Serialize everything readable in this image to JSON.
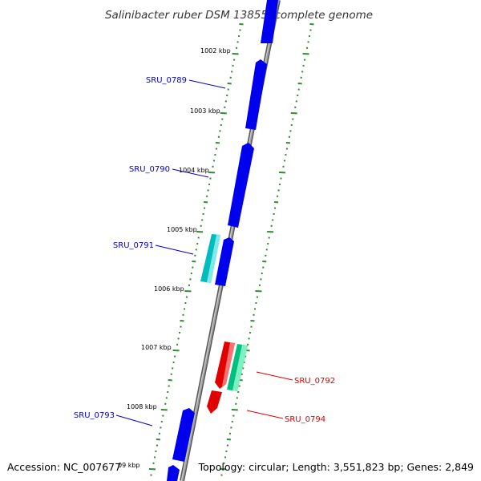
{
  "title": "Salinibacter ruber DSM 13855, complete genome",
  "accession_text": "Accession: NC_007677",
  "topology_text": "Topology: circular; Length: 3,551,823 bp; Genes: 2,849",
  "colors": {
    "backbone": "#8a8a8a",
    "tick": "#2e8b2e",
    "forward_cds": "#0000ee",
    "forward_alt": "#00bcbc",
    "reverse_cds": "#e00000",
    "reverse_alt": "#00c080",
    "forward_label": "#0000cc",
    "reverse_label": "#dd0000"
  },
  "kbp_labels": [
    "1002 kbp",
    "1003 kbp",
    "1004 kbp",
    "1005 kbp",
    "1006 kbp",
    "1007 kbp",
    "1008 kbp",
    "09 kbp"
  ],
  "gene_labels": [
    {
      "id": "SRU_0789",
      "strand": "forward"
    },
    {
      "id": "SRU_0790",
      "strand": "forward"
    },
    {
      "id": "SRU_0791",
      "strand": "forward"
    },
    {
      "id": "SRU_0793",
      "strand": "forward"
    },
    {
      "id": "SRU_0792",
      "strand": "reverse"
    },
    {
      "id": "SRU_0794",
      "strand": "reverse"
    }
  ]
}
